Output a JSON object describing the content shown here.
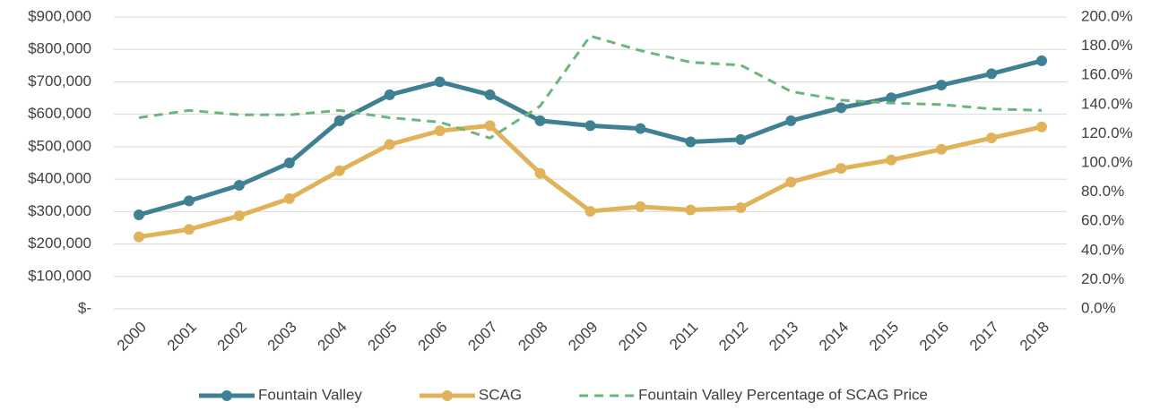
{
  "chart_data": {
    "type": "line",
    "categories": [
      "2000",
      "2001",
      "2002",
      "2003",
      "2004",
      "2005",
      "2006",
      "2007",
      "2008",
      "2009",
      "2010",
      "2011",
      "2012",
      "2013",
      "2014",
      "2015",
      "2016",
      "2017",
      "2018"
    ],
    "series": [
      {
        "name": "Fountain Valley",
        "color": "#3f8193",
        "values": [
          290000,
          333000,
          381000,
          450000,
          580000,
          660000,
          700000,
          660000,
          580000,
          565000,
          556000,
          515000,
          522000,
          580000,
          620000,
          651000,
          690000,
          725000,
          765000
        ]
      },
      {
        "name": "SCAG",
        "color": "#e0b35a",
        "values": [
          222000,
          245000,
          287000,
          340000,
          426000,
          507000,
          549000,
          565000,
          418000,
          301000,
          315000,
          305000,
          312000,
          391000,
          433000,
          459000,
          492000,
          527000,
          561000
        ]
      },
      {
        "name": "Fountain Valley Percentage of SCAG Price",
        "color": "#6db57e",
        "dashed": true,
        "axis": "y2",
        "values": [
          131,
          136,
          133,
          133,
          136,
          131,
          128,
          117,
          139,
          187,
          177,
          169,
          167,
          149,
          143,
          141,
          140,
          137,
          136
        ]
      }
    ],
    "ylim": [
      0,
      900000
    ],
    "yticks": [
      {
        "value": 0,
        "label": "$-"
      },
      {
        "value": 100000,
        "label": "$100,000"
      },
      {
        "value": 200000,
        "label": "$200,000"
      },
      {
        "value": 300000,
        "label": "$300,000"
      },
      {
        "value": 400000,
        "label": "$400,000"
      },
      {
        "value": 500000,
        "label": "$500,000"
      },
      {
        "value": 600000,
        "label": "$600,000"
      },
      {
        "value": 700000,
        "label": "$700,000"
      },
      {
        "value": 800000,
        "label": "$800,000"
      },
      {
        "value": 900000,
        "label": "$900,000"
      }
    ],
    "y2lim": [
      0,
      200
    ],
    "y2ticks": [
      {
        "value": 0,
        "label": "0.0%"
      },
      {
        "value": 20,
        "label": "20.0%"
      },
      {
        "value": 40,
        "label": "40.0%"
      },
      {
        "value": 60,
        "label": "60.0%"
      },
      {
        "value": 80,
        "label": "80.0%"
      },
      {
        "value": 100,
        "label": "100.0%"
      },
      {
        "value": 120,
        "label": "120.0%"
      },
      {
        "value": 140,
        "label": "140.0%"
      },
      {
        "value": 160,
        "label": "160.0%"
      },
      {
        "value": 180,
        "label": "180.0%"
      },
      {
        "value": 200,
        "label": "200.0%"
      }
    ],
    "grid": true,
    "legend": "bottom"
  }
}
